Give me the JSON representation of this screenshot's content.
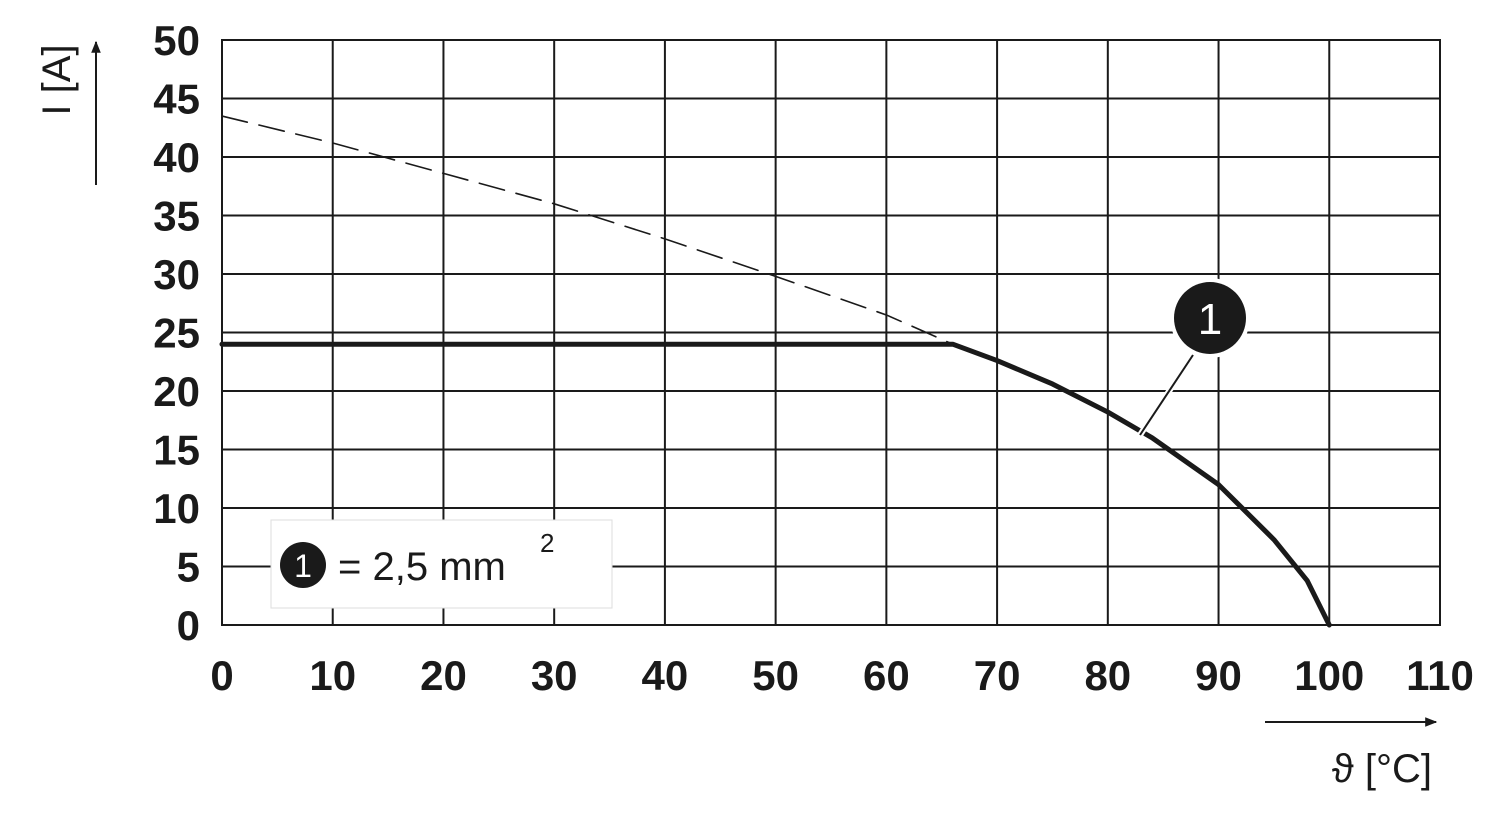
{
  "chart_data": {
    "type": "line",
    "x_label": "ϑ [°C]",
    "y_label": "I [A]",
    "xlim": [
      0,
      110
    ],
    "xticks": [
      0,
      10,
      20,
      30,
      40,
      50,
      60,
      70,
      80,
      90,
      100,
      110
    ],
    "ylim": [
      0,
      50
    ],
    "yticks": [
      0,
      5,
      10,
      15,
      20,
      25,
      30,
      35,
      40,
      45,
      50
    ],
    "grid": true,
    "series": [
      {
        "name": "1",
        "legend_text": "= 2,5 mm",
        "legend_sup": "2",
        "color": "#1a1a1a",
        "style": "solid",
        "x": [
          0,
          66,
          70,
          75,
          80,
          84,
          90,
          95,
          98,
          100
        ],
        "values": [
          24,
          24,
          22.6,
          20.6,
          18.2,
          16,
          12,
          7.3,
          3.8,
          0
        ]
      },
      {
        "color": "#1a1a1a",
        "style": "dashed",
        "x": [
          0,
          10,
          20,
          30,
          40,
          50,
          60,
          66
        ],
        "values": [
          43.5,
          41.2,
          38.6,
          36,
          33,
          29.8,
          26.5,
          24
        ]
      }
    ],
    "annotation": "1"
  }
}
